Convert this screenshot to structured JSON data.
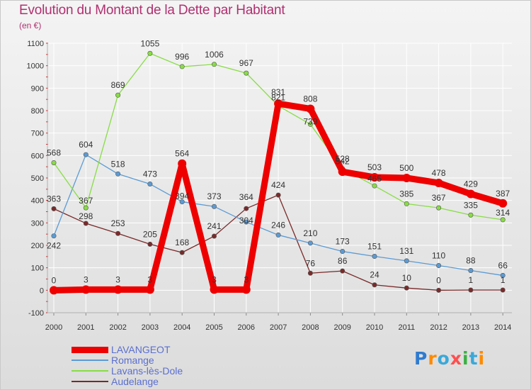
{
  "title": "Evolution du Montant de la Dette par Habitant",
  "subtitle": "(en €)",
  "logo": {
    "text": "Proxiti",
    "letter_colors": [
      "#2f7bd0",
      "#ff8a00",
      "#3aa8d8",
      "#ff4f4f",
      "#3cb043",
      "#3aa8d8",
      "#ff8a00"
    ]
  },
  "colors": {
    "axis_text": "#333333",
    "tick_red": "#cc2020",
    "grid": "#ffffff"
  },
  "chart_data": {
    "type": "line",
    "title": "Evolution du Montant de la Dette par Habitant",
    "subtitle": "(en €)",
    "xlabel": "",
    "ylabel": "",
    "x": [
      "2000",
      "2001",
      "2002",
      "2003",
      "2004",
      "2005",
      "2006",
      "2007",
      "2008",
      "2009",
      "2010",
      "2011",
      "2012",
      "2013",
      "2014"
    ],
    "ylim": [
      -100,
      1100
    ],
    "yticks": [
      "-100",
      "0",
      "100",
      "200",
      "300",
      "400",
      "500",
      "600",
      "700",
      "800",
      "900",
      "1000",
      "1100"
    ],
    "grid": true,
    "legend_position": "bottom-left",
    "series": [
      {
        "name": "LAVANGEOT",
        "color": "#ee0000",
        "values": [
          0,
          3,
          3,
          3,
          564,
          3,
          3,
          831,
          808,
          528,
          503,
          500,
          478,
          429,
          387
        ],
        "labels": [
          "0",
          "3",
          "3",
          "3",
          "564",
          "3",
          "3",
          "831",
          "808",
          "528",
          "503",
          "500",
          "478",
          "429",
          "387"
        ]
      },
      {
        "name": "Romange",
        "color": "#5b9bd5",
        "values": [
          242,
          604,
          518,
          473,
          394,
          373,
          304,
          246,
          210,
          173,
          151,
          131,
          110,
          88,
          66
        ],
        "labels": [
          "242",
          "604",
          "518",
          "473",
          "394",
          "373",
          "304",
          "246",
          "210",
          "173",
          "151",
          "131",
          "110",
          "88",
          "66"
        ]
      },
      {
        "name": "Lavans-lès-Dole",
        "color": "#88dd44",
        "values": [
          568,
          367,
          869,
          1055,
          996,
          1006,
          967,
          821,
          739,
          542,
          465,
          385,
          367,
          335,
          314
        ],
        "labels": [
          "568",
          "367",
          "869",
          "1055",
          "996",
          "1006",
          "967",
          "821",
          "739",
          "542",
          "465",
          "385",
          "367",
          "335",
          "314"
        ]
      },
      {
        "name": "Audelange",
        "color": "#7a2a2a",
        "values": [
          363,
          298,
          253,
          205,
          168,
          241,
          364,
          424,
          76,
          86,
          24,
          10,
          0,
          1,
          1
        ],
        "labels": [
          "363",
          "298",
          "253",
          "205",
          "168",
          "241",
          "364",
          "424",
          "76",
          "86",
          "24",
          "10",
          "0",
          "1",
          "1"
        ]
      }
    ]
  }
}
